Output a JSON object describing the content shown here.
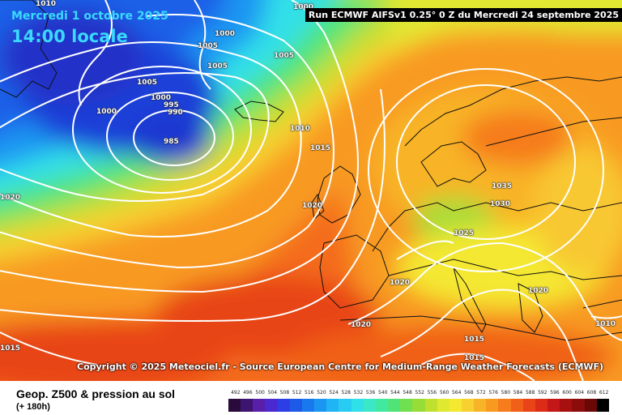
{
  "header": {
    "date": "Mercredi 1 octobre 2025",
    "time": "14:00 locale",
    "run": "Run ECMWF AIFSv1 0.25° 0 Z du Mercredi 24 septembre 2025"
  },
  "copyright": "Copyright © 2025 Meteociel.fr - Source European Centre for Medium-Range Weather Forecasts (ECMWF)",
  "isobar_labels": [
    "1010",
    "1000",
    "1000",
    "1005",
    "1005",
    "1005",
    "1005",
    "1000",
    "995",
    "990",
    "1000",
    "985",
    "1010",
    "1015",
    "1020",
    "1020",
    "1035",
    "1030",
    "1025",
    "1020",
    "1020",
    "1020",
    "1015",
    "1015",
    "1010",
    "1015"
  ],
  "footer": {
    "title": "Geop. Z500 & pression au sol",
    "subtitle": "(+ 180h)"
  },
  "scale": {
    "labels": [
      "492",
      "496",
      "500",
      "504",
      "508",
      "512",
      "516",
      "520",
      "524",
      "528",
      "532",
      "536",
      "540",
      "544",
      "548",
      "552",
      "556",
      "560",
      "564",
      "568",
      "572",
      "576",
      "580",
      "584",
      "588",
      "592",
      "596",
      "600",
      "604",
      "608",
      "612"
    ],
    "colors": [
      "#2a0a3a",
      "#3d1470",
      "#5a1fa8",
      "#4a2ad0",
      "#2e3ee6",
      "#1e5ae8",
      "#1a78ee",
      "#1a96f2",
      "#20b4f4",
      "#28ccf2",
      "#30e0e8",
      "#3ae8c8",
      "#40e8a0",
      "#50e478",
      "#70e050",
      "#98dc38",
      "#c0e030",
      "#e0e830",
      "#f4e830",
      "#f8d030",
      "#f8b428",
      "#f89a20",
      "#f67c1c",
      "#f06018",
      "#e84418",
      "#dc2c18",
      "#c41818",
      "#a81010",
      "#8c0c0c",
      "#6a0808",
      "#000000"
    ]
  }
}
